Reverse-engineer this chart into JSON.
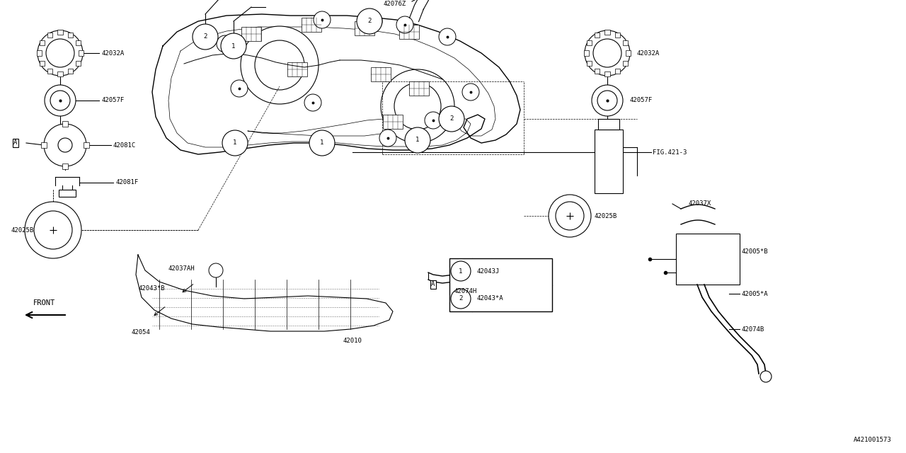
{
  "bg_color": "#ffffff",
  "line_color": "#000000",
  "ref_code": "A421001573",
  "fig_width": 12.8,
  "fig_height": 6.4,
  "xlim": [
    0,
    12.8
  ],
  "ylim": [
    0,
    6.4
  ]
}
